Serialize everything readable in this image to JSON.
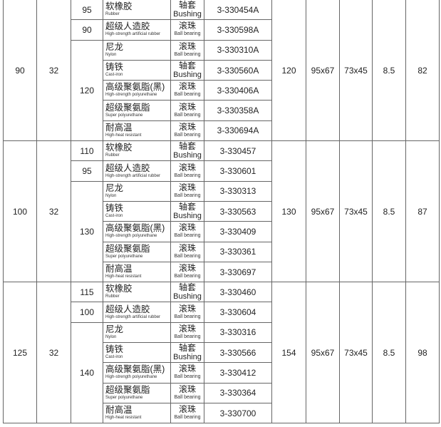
{
  "materials": [
    {
      "zh": "软橡胶",
      "en": "Rubber"
    },
    {
      "zh": "超级人造胶",
      "en": "High-strength artificial rubber"
    },
    {
      "zh": "尼龙",
      "en": "Nylon"
    },
    {
      "zh": "铸铁",
      "en": "Cast-iron"
    },
    {
      "zh": "高级聚氨脂(黑)",
      "en": "High-strength polyurethane"
    },
    {
      "zh": "超级聚氨脂",
      "en": "Super polyurethane"
    },
    {
      "zh": "耐高温",
      "en": "High-heat resistant"
    }
  ],
  "bearing_types": {
    "bushing": {
      "zh": "轴套",
      "en": "Bushing"
    },
    "ball": {
      "zh": "滚珠",
      "en": "Ball bearing"
    }
  },
  "row_bearings": [
    "bushing",
    "ball",
    "ball",
    "bushing",
    "ball",
    "ball",
    "ball"
  ],
  "groups": [
    {
      "c1": "90",
      "c2": "32",
      "c3": [
        {
          "v": "95",
          "span": 1
        },
        {
          "v": "90",
          "span": 1
        },
        {
          "v": "120",
          "span": 5
        }
      ],
      "parts": [
        "3-330454A",
        "3-330598A",
        "3-330310A",
        "3-330560A",
        "3-330406A",
        "3-330358A",
        "3-330694A"
      ],
      "c7": "120",
      "c8": "95x67",
      "c9": "73x45",
      "c10": "8.5",
      "c11": "82"
    },
    {
      "c1": "100",
      "c2": "32",
      "c3": [
        {
          "v": "110",
          "span": 1
        },
        {
          "v": "95",
          "span": 1
        },
        {
          "v": "130",
          "span": 5
        }
      ],
      "parts": [
        "3-330457",
        "3-330601",
        "3-330313",
        "3-330563",
        "3-330409",
        "3-330361",
        "3-330697"
      ],
      "c7": "130",
      "c8": "95x67",
      "c9": "73x45",
      "c10": "8.5",
      "c11": "87"
    },
    {
      "c1": "125",
      "c2": "32",
      "c3": [
        {
          "v": "115",
          "span": 1
        },
        {
          "v": "100",
          "span": 1
        },
        {
          "v": "140",
          "span": 5
        }
      ],
      "parts": [
        "3-330460",
        "3-330604",
        "3-330316",
        "3-330566",
        "3-330412",
        "3-330364",
        "3-330700"
      ],
      "c7": "154",
      "c8": "95x67",
      "c9": "73x45",
      "c10": "8.5",
      "c11": "98"
    }
  ]
}
